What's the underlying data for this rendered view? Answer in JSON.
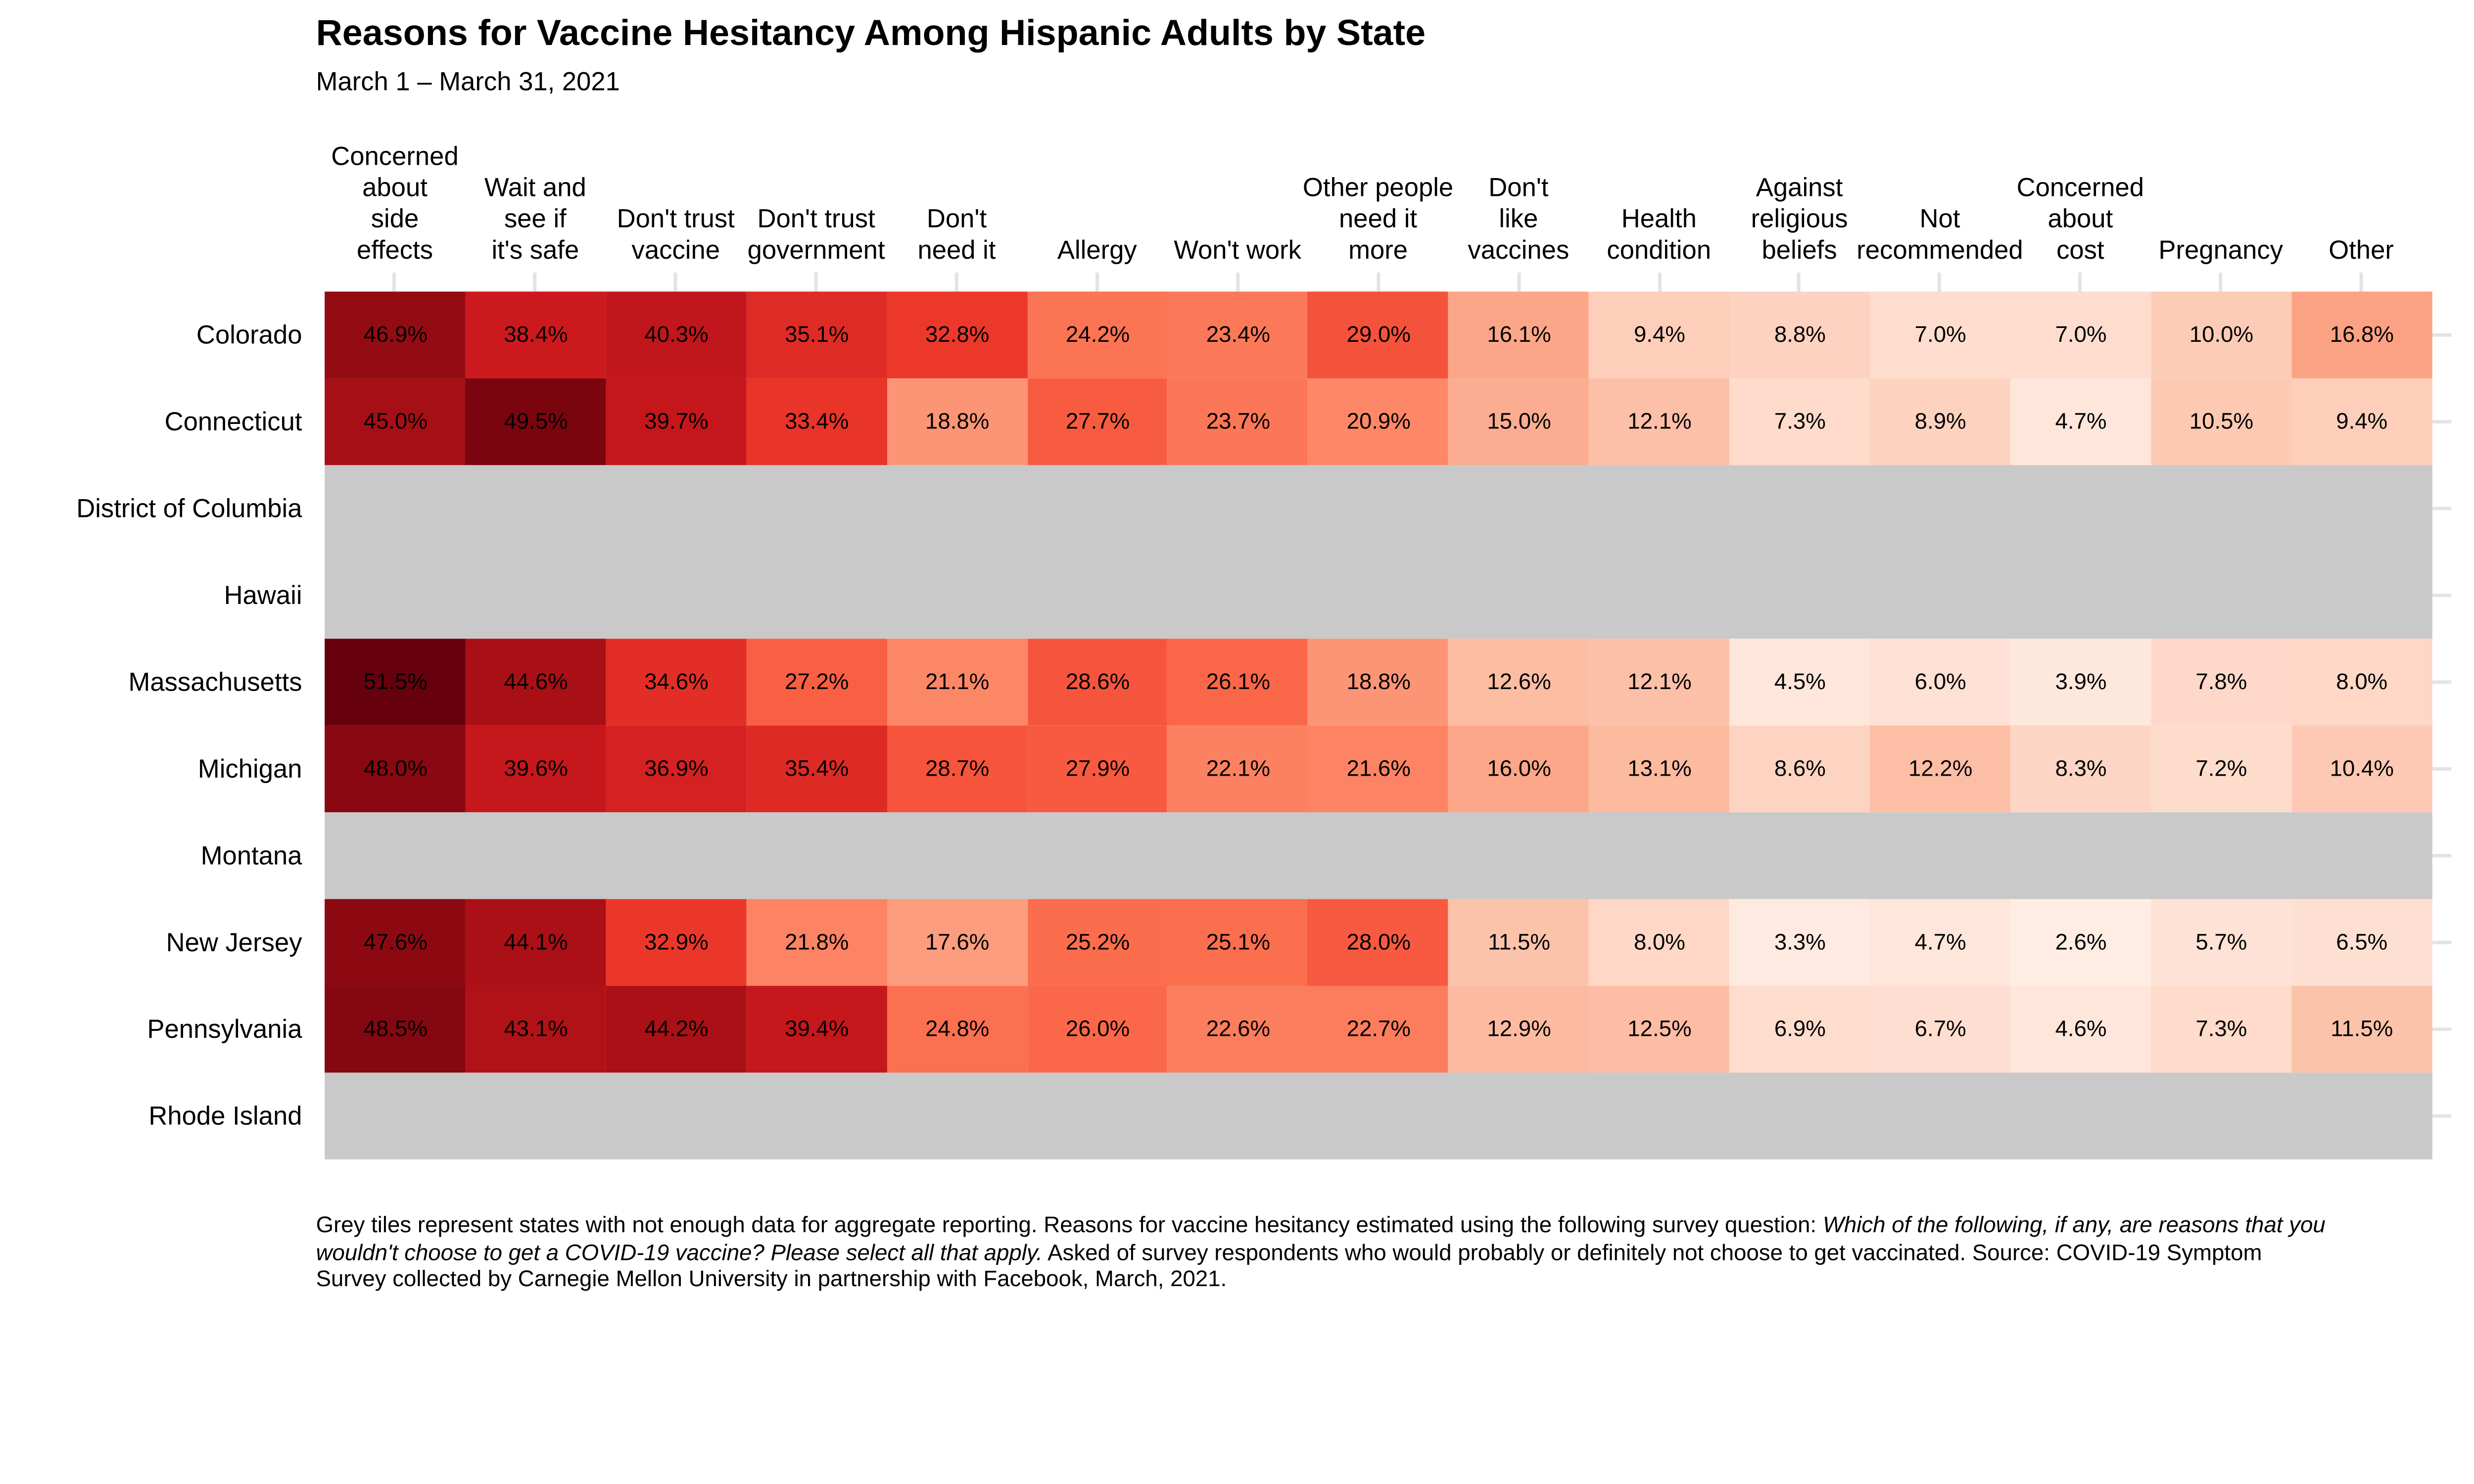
{
  "chart_data": {
    "type": "heatmap",
    "title": "Reasons for Vaccine Hesitancy Among Hispanic Adults by State",
    "subtitle": "March 1 – March 31, 2021",
    "unit": "%",
    "value_format": "one_decimal_percent",
    "legend_position": "none",
    "grid": "tick-gridlines at row and column centers, light grey",
    "columns": [
      "Concerned\nabout\nside\neffects",
      "Wait and\nsee if\nit's safe",
      "Don't trust\nvaccine",
      "Don't trust\ngovernment",
      "Don't\nneed it",
      "Allergy",
      "Won't work",
      "Other people\nneed it\nmore",
      "Don't\nlike\nvaccines",
      "Health\ncondition",
      "Against\nreligious\nbeliefs",
      "Not\nrecommended",
      "Concerned\nabout\ncost",
      "Pregnancy",
      "Other"
    ],
    "rows": [
      {
        "state": "Colorado",
        "values": [
          46.9,
          38.4,
          40.3,
          35.1,
          32.8,
          24.2,
          23.4,
          29.0,
          16.1,
          9.4,
          8.8,
          7.0,
          7.0,
          10.0,
          16.8
        ]
      },
      {
        "state": "Connecticut",
        "values": [
          45.0,
          49.5,
          39.7,
          33.4,
          18.8,
          27.7,
          23.7,
          20.9,
          15.0,
          12.1,
          7.3,
          8.9,
          4.7,
          10.5,
          9.4
        ]
      },
      {
        "state": "District of Columbia",
        "values": null
      },
      {
        "state": "Hawaii",
        "values": null
      },
      {
        "state": "Massachusetts",
        "values": [
          51.5,
          44.6,
          34.6,
          27.2,
          21.1,
          28.6,
          26.1,
          18.8,
          12.6,
          12.1,
          4.5,
          6.0,
          3.9,
          7.8,
          8.0
        ]
      },
      {
        "state": "Michigan",
        "values": [
          48.0,
          39.6,
          36.9,
          35.4,
          28.7,
          27.9,
          22.1,
          21.6,
          16.0,
          13.1,
          8.6,
          12.2,
          8.3,
          7.2,
          10.4
        ]
      },
      {
        "state": "Montana",
        "values": null
      },
      {
        "state": "New Jersey",
        "values": [
          47.6,
          44.1,
          32.9,
          21.8,
          17.6,
          25.2,
          25.1,
          28.0,
          11.5,
          8.0,
          3.3,
          4.7,
          2.6,
          5.7,
          6.5
        ]
      },
      {
        "state": "Pennsylvania",
        "values": [
          48.5,
          43.1,
          44.2,
          39.4,
          24.8,
          26.0,
          22.6,
          22.7,
          12.9,
          12.5,
          6.9,
          6.7,
          4.6,
          7.3,
          11.5
        ]
      },
      {
        "state": "Rhode Island",
        "values": null
      }
    ],
    "color_scale": {
      "type": "linear",
      "palette": [
        "#fff5f0",
        "#fee0d2",
        "#fcbba1",
        "#fc9272",
        "#fb6a4a",
        "#ef3b2c",
        "#cb181d",
        "#a50f15",
        "#67000d"
      ],
      "domain": [
        0,
        51.5
      ]
    },
    "no_data_color": "#c9c9c9",
    "gridline_color": "#e3e3e3",
    "text_color": "#000000",
    "footnote": {
      "part1": "Grey tiles represent states with not enough data for aggregate reporting. Reasons for vaccine hesitancy estimated using the following survey question: ",
      "part2_italic": "Which of the following, if any, are reasons that you wouldn't choose to get a COVID-19 vaccine? Please select all that apply.",
      "part3": " Asked of survey respondents who would probably or definitely not choose to get vaccinated. Source: COVID-19 Symptom Survey collected by Carnegie Mellon University in partnership with Facebook, March, 2021."
    }
  }
}
